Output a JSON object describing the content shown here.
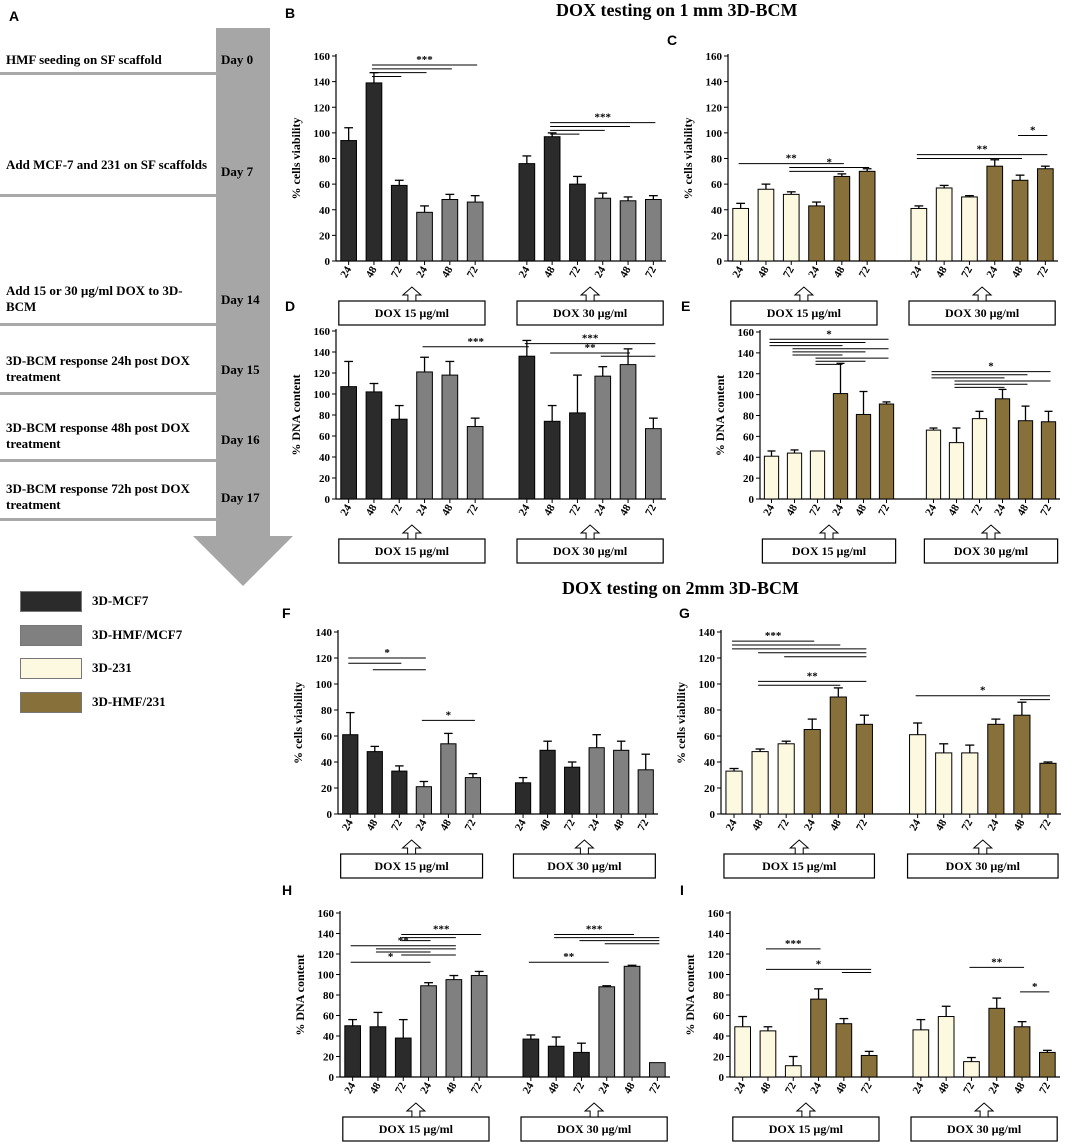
{
  "protocol": {
    "panel_label": "A",
    "steps": [
      {
        "text": "HMF seeding on SF scaffold",
        "day": "Day 0"
      },
      {
        "text": "Add MCF-7 and 231 on SF scaffolds",
        "day": "Day 7"
      },
      {
        "text": "Add 15 or 30 µg/ml DOX to 3D-BCM",
        "day": "Day 14"
      },
      {
        "text": "3D-BCM response 24h post DOX treatment",
        "day": "Day 15"
      },
      {
        "text": "3D-BCM response 48h post DOX treatment",
        "day": "Day 16"
      },
      {
        "text": "3D-BCM response 72h post DOX treatment",
        "day": "Day 17"
      }
    ]
  },
  "legend": [
    {
      "label": "3D-MCF7",
      "color": "#2b2b2b"
    },
    {
      "label": "3D-HMF/MCF7",
      "color": "#808080"
    },
    {
      "label": "3D-231",
      "color": "#fdf8e0"
    },
    {
      "label": "3D-HMF/231",
      "color": "#87703a"
    }
  ],
  "section_titles": {
    "top": "DOX testing on 1 mm 3D-BCM",
    "bottom": "DOX testing on 2mm 3D-BCM"
  },
  "chart_data": [
    {
      "panel": "B",
      "type": "bar",
      "ylabel": "% cells viability",
      "ylim": [
        0,
        160
      ],
      "yticks": [
        0,
        20,
        40,
        60,
        80,
        100,
        120,
        140,
        160
      ],
      "categories": [
        "24",
        "48",
        "72",
        "24",
        "48",
        "72",
        "24",
        "48",
        "72",
        "24",
        "48",
        "72"
      ],
      "values": [
        94,
        139,
        59,
        38,
        48,
        46,
        76,
        97,
        60,
        49,
        47,
        48
      ],
      "errors": [
        10,
        8,
        4,
        5,
        4,
        5,
        6,
        3,
        6,
        4,
        3,
        3
      ],
      "colors": [
        "#2b2b2b",
        "#2b2b2b",
        "#2b2b2b",
        "#808080",
        "#808080",
        "#808080",
        "#2b2b2b",
        "#2b2b2b",
        "#2b2b2b",
        "#808080",
        "#808080",
        "#808080"
      ],
      "groups": [
        "DOX 15 µg/ml",
        "DOX 30 µg/ml"
      ],
      "sig": [
        {
          "y": 153,
          "x1": 2,
          "x2": 6,
          "label": "***"
        },
        {
          "y": 150,
          "x1": 2,
          "x2": 5
        },
        {
          "y": 147,
          "x1": 2,
          "x2": 4
        },
        {
          "y": 144,
          "x1": 2,
          "x2": 3
        },
        {
          "y": 108,
          "x1": 8,
          "x2": 12,
          "label": "***"
        },
        {
          "y": 105,
          "x1": 8,
          "x2": 11
        },
        {
          "y": 102,
          "x1": 8,
          "x2": 10
        },
        {
          "y": 99,
          "x1": 8,
          "x2": 9
        }
      ]
    },
    {
      "panel": "C",
      "type": "bar",
      "ylabel": "% cells viability",
      "ylim": [
        0,
        160
      ],
      "yticks": [
        0,
        20,
        40,
        60,
        80,
        100,
        120,
        140,
        160
      ],
      "categories": [
        "24",
        "48",
        "72",
        "24",
        "48",
        "72",
        "24",
        "48",
        "72",
        "24",
        "48",
        "72"
      ],
      "values": [
        41,
        56,
        52,
        43,
        66,
        70,
        41,
        57,
        50,
        74,
        63,
        72
      ],
      "errors": [
        4,
        4,
        2,
        3,
        2,
        2,
        2,
        2,
        1,
        5,
        4,
        2
      ],
      "colors": [
        "#fdf8e0",
        "#fdf8e0",
        "#fdf8e0",
        "#87703a",
        "#87703a",
        "#87703a",
        "#fdf8e0",
        "#fdf8e0",
        "#fdf8e0",
        "#87703a",
        "#87703a",
        "#87703a"
      ],
      "groups": [
        "DOX 15 µg/ml",
        "DOX 30 µg/ml"
      ],
      "sig": [
        {
          "y": 76,
          "x1": 1,
          "x2": 5,
          "label": "**"
        },
        {
          "y": 73,
          "x1": 3,
          "x2": 6,
          "label": "*"
        },
        {
          "y": 70,
          "x1": 3,
          "x2": 5
        },
        {
          "y": 98,
          "x1": 11,
          "x2": 12,
          "label": "*"
        },
        {
          "y": 83,
          "x1": 7,
          "x2": 12,
          "label": "**"
        },
        {
          "y": 80,
          "x1": 7,
          "x2": 11
        }
      ]
    },
    {
      "panel": "D",
      "type": "bar",
      "ylabel": "% DNA content",
      "ylim": [
        0,
        160
      ],
      "yticks": [
        0,
        20,
        40,
        60,
        80,
        100,
        120,
        140,
        160
      ],
      "categories": [
        "24",
        "48",
        "72",
        "24",
        "48",
        "72",
        "24",
        "48",
        "72",
        "24",
        "48",
        "72"
      ],
      "values": [
        107,
        102,
        76,
        121,
        118,
        69,
        136,
        74,
        82,
        117,
        128,
        67
      ],
      "errors": [
        24,
        8,
        13,
        14,
        13,
        8,
        15,
        15,
        36,
        9,
        15,
        10
      ],
      "colors": [
        "#2b2b2b",
        "#2b2b2b",
        "#2b2b2b",
        "#808080",
        "#808080",
        "#808080",
        "#2b2b2b",
        "#2b2b2b",
        "#2b2b2b",
        "#808080",
        "#808080",
        "#808080"
      ],
      "groups": [
        "DOX 15 µg/ml",
        "DOX 30 µg/ml"
      ],
      "sig": [
        {
          "y": 145,
          "x1": 4,
          "x2": 7,
          "label": "***"
        },
        {
          "y": 148,
          "x1": 7,
          "x2": 12,
          "label": "***"
        },
        {
          "y": 139,
          "x1": 8,
          "x2": 11,
          "label": "**"
        },
        {
          "y": 136,
          "x1": 10,
          "x2": 12
        }
      ]
    },
    {
      "panel": "E",
      "type": "bar",
      "ylabel": "% DNA content",
      "ylim": [
        0,
        160
      ],
      "yticks": [
        0,
        20,
        40,
        60,
        80,
        100,
        120,
        140,
        160
      ],
      "categories": [
        "24",
        "48",
        "72",
        "24",
        "48",
        "72",
        "24",
        "48",
        "72",
        "24",
        "48",
        "72"
      ],
      "values": [
        41,
        44,
        46,
        101,
        81,
        91,
        66,
        54,
        77,
        96,
        75,
        74
      ],
      "errors": [
        5,
        3,
        0,
        29,
        22,
        2,
        2,
        14,
        7,
        9,
        14,
        10
      ],
      "colors": [
        "#fdf8e0",
        "#fdf8e0",
        "#fdf8e0",
        "#87703a",
        "#87703a",
        "#87703a",
        "#fdf8e0",
        "#fdf8e0",
        "#fdf8e0",
        "#87703a",
        "#87703a",
        "#87703a"
      ],
      "groups": [
        "DOX 15 µg/ml",
        "DOX 30 µg/ml"
      ],
      "sig": [
        {
          "y": 153,
          "x1": 1,
          "x2": 6,
          "label": "*"
        },
        {
          "y": 150,
          "x1": 1,
          "x2": 5
        },
        {
          "y": 147,
          "x1": 1,
          "x2": 4
        },
        {
          "y": 144,
          "x1": 2,
          "x2": 6
        },
        {
          "y": 141,
          "x1": 2,
          "x2": 5
        },
        {
          "y": 138,
          "x1": 2,
          "x2": 4
        },
        {
          "y": 135,
          "x1": 3,
          "x2": 6
        },
        {
          "y": 132,
          "x1": 3,
          "x2": 5
        },
        {
          "y": 129,
          "x1": 3,
          "x2": 4
        },
        {
          "y": 122,
          "x1": 7,
          "x2": 12,
          "label": "*"
        },
        {
          "y": 119,
          "x1": 7,
          "x2": 11
        },
        {
          "y": 116,
          "x1": 7,
          "x2": 10
        },
        {
          "y": 113,
          "x1": 8,
          "x2": 12
        },
        {
          "y": 110,
          "x1": 8,
          "x2": 11
        },
        {
          "y": 107,
          "x1": 8,
          "x2": 10
        }
      ]
    },
    {
      "panel": "F",
      "type": "bar",
      "ylabel": "% cells viability",
      "ylim": [
        0,
        140
      ],
      "yticks": [
        0,
        20,
        40,
        60,
        80,
        100,
        120,
        140
      ],
      "categories": [
        "24",
        "48",
        "72",
        "24",
        "48",
        "72",
        "24",
        "48",
        "72",
        "24",
        "48",
        "72"
      ],
      "values": [
        61,
        48,
        33,
        21,
        54,
        28,
        24,
        49,
        36,
        51,
        49,
        34
      ],
      "errors": [
        17,
        4,
        4,
        4,
        8,
        3,
        4,
        7,
        4,
        10,
        7,
        12
      ],
      "colors": [
        "#2b2b2b",
        "#2b2b2b",
        "#2b2b2b",
        "#808080",
        "#808080",
        "#808080",
        "#2b2b2b",
        "#2b2b2b",
        "#2b2b2b",
        "#808080",
        "#808080",
        "#808080"
      ],
      "groups": [
        "DOX 15 µg/ml",
        "DOX 30 µg/ml"
      ],
      "sig": [
        {
          "y": 120,
          "x1": 1,
          "x2": 4,
          "label": "*"
        },
        {
          "y": 116,
          "x1": 1,
          "x2": 3
        },
        {
          "y": 111,
          "x1": 2,
          "x2": 4
        },
        {
          "y": 72,
          "x1": 4,
          "x2": 6,
          "label": "*"
        }
      ]
    },
    {
      "panel": "G",
      "type": "bar",
      "ylabel": "% cells viability",
      "ylim": [
        0,
        140
      ],
      "yticks": [
        0,
        20,
        40,
        60,
        80,
        100,
        120,
        140
      ],
      "categories": [
        "24",
        "48",
        "72",
        "24",
        "48",
        "72",
        "24",
        "48",
        "72",
        "24",
        "48",
        "72"
      ],
      "values": [
        33,
        48,
        54,
        65,
        90,
        69,
        61,
        47,
        47,
        69,
        76,
        39
      ],
      "errors": [
        2,
        2,
        2,
        8,
        7,
        7,
        9,
        7,
        6,
        4,
        10,
        1
      ],
      "colors": [
        "#fdf8e0",
        "#fdf8e0",
        "#fdf8e0",
        "#87703a",
        "#87703a",
        "#87703a",
        "#fdf8e0",
        "#fdf8e0",
        "#fdf8e0",
        "#87703a",
        "#87703a",
        "#87703a"
      ],
      "groups": [
        "DOX 15 µg/ml",
        "DOX 30 µg/ml"
      ],
      "sig": [
        {
          "y": 133,
          "x1": 1,
          "x2": 4,
          "label": "***"
        },
        {
          "y": 130,
          "x1": 1,
          "x2": 5
        },
        {
          "y": 127,
          "x1": 1,
          "x2": 6
        },
        {
          "y": 124,
          "x1": 2,
          "x2": 6
        },
        {
          "y": 121,
          "x1": 3,
          "x2": 6
        },
        {
          "y": 102,
          "x1": 2,
          "x2": 6,
          "label": "**"
        },
        {
          "y": 99,
          "x1": 2,
          "x2": 5
        },
        {
          "y": 91,
          "x1": 7,
          "x2": 12,
          "label": "*"
        },
        {
          "y": 88,
          "x1": 11,
          "x2": 12
        }
      ]
    },
    {
      "panel": "H",
      "type": "bar",
      "ylabel": "% DNA content",
      "ylim": [
        0,
        160
      ],
      "yticks": [
        0,
        20,
        40,
        60,
        80,
        100,
        120,
        140,
        160
      ],
      "categories": [
        "24",
        "48",
        "72",
        "24",
        "48",
        "72",
        "24",
        "48",
        "72",
        "24",
        "48",
        "72"
      ],
      "values": [
        50,
        49,
        38,
        89,
        95,
        99,
        37,
        30,
        24,
        88,
        108,
        14
      ],
      "errors": [
        6,
        14,
        18,
        3,
        4,
        4,
        4,
        9,
        9,
        1,
        1,
        0
      ],
      "colors": [
        "#2b2b2b",
        "#2b2b2b",
        "#2b2b2b",
        "#808080",
        "#808080",
        "#808080",
        "#2b2b2b",
        "#2b2b2b",
        "#2b2b2b",
        "#808080",
        "#808080",
        "#808080"
      ],
      "groups": [
        "DOX 15 µg/ml",
        "DOX 30 µg/ml"
      ],
      "sig": [
        {
          "y": 139,
          "x1": 3,
          "x2": 6,
          "label": "***"
        },
        {
          "y": 136,
          "x1": 3,
          "x2": 5
        },
        {
          "y": 133,
          "x1": 3,
          "x2": 4
        },
        {
          "y": 128,
          "x1": 1,
          "x2": 5,
          "label": "**"
        },
        {
          "y": 125,
          "x1": 2,
          "x2": 5
        },
        {
          "y": 122,
          "x1": 2,
          "x2": 4
        },
        {
          "y": 119,
          "x1": 3,
          "x2": 5
        },
        {
          "y": 112,
          "x1": 1,
          "x2": 4,
          "label": "*"
        },
        {
          "y": 139,
          "x1": 8,
          "x2": 11,
          "label": "***"
        },
        {
          "y": 136,
          "x1": 8,
          "x2": 12
        },
        {
          "y": 133,
          "x1": 9,
          "x2": 12
        },
        {
          "y": 130,
          "x1": 10,
          "x2": 12
        },
        {
          "y": 112,
          "x1": 7,
          "x2": 10,
          "label": "**"
        }
      ]
    },
    {
      "panel": "I",
      "type": "bar",
      "ylabel": "% DNA content",
      "ylim": [
        0,
        160
      ],
      "yticks": [
        0,
        20,
        40,
        60,
        80,
        100,
        120,
        140,
        160
      ],
      "categories": [
        "24",
        "48",
        "72",
        "24",
        "48",
        "72",
        "24",
        "48",
        "72",
        "24",
        "48",
        "72"
      ],
      "values": [
        49,
        45,
        11,
        76,
        52,
        21,
        46,
        59,
        15,
        67,
        49,
        24
      ],
      "errors": [
        10,
        4,
        9,
        10,
        5,
        4,
        10,
        10,
        4,
        10,
        5,
        2
      ],
      "colors": [
        "#fdf8e0",
        "#fdf8e0",
        "#fdf8e0",
        "#87703a",
        "#87703a",
        "#87703a",
        "#fdf8e0",
        "#fdf8e0",
        "#fdf8e0",
        "#87703a",
        "#87703a",
        "#87703a"
      ],
      "groups": [
        "DOX 15 µg/ml",
        "DOX 30 µg/ml"
      ],
      "sig": [
        {
          "y": 125,
          "x1": 2,
          "x2": 4,
          "label": "***"
        },
        {
          "y": 105,
          "x1": 2,
          "x2": 6,
          "label": "*"
        },
        {
          "y": 102,
          "x1": 5,
          "x2": 6
        },
        {
          "y": 107,
          "x1": 9,
          "x2": 11,
          "label": "**"
        },
        {
          "y": 83,
          "x1": 11,
          "x2": 12,
          "label": "*"
        }
      ]
    }
  ]
}
